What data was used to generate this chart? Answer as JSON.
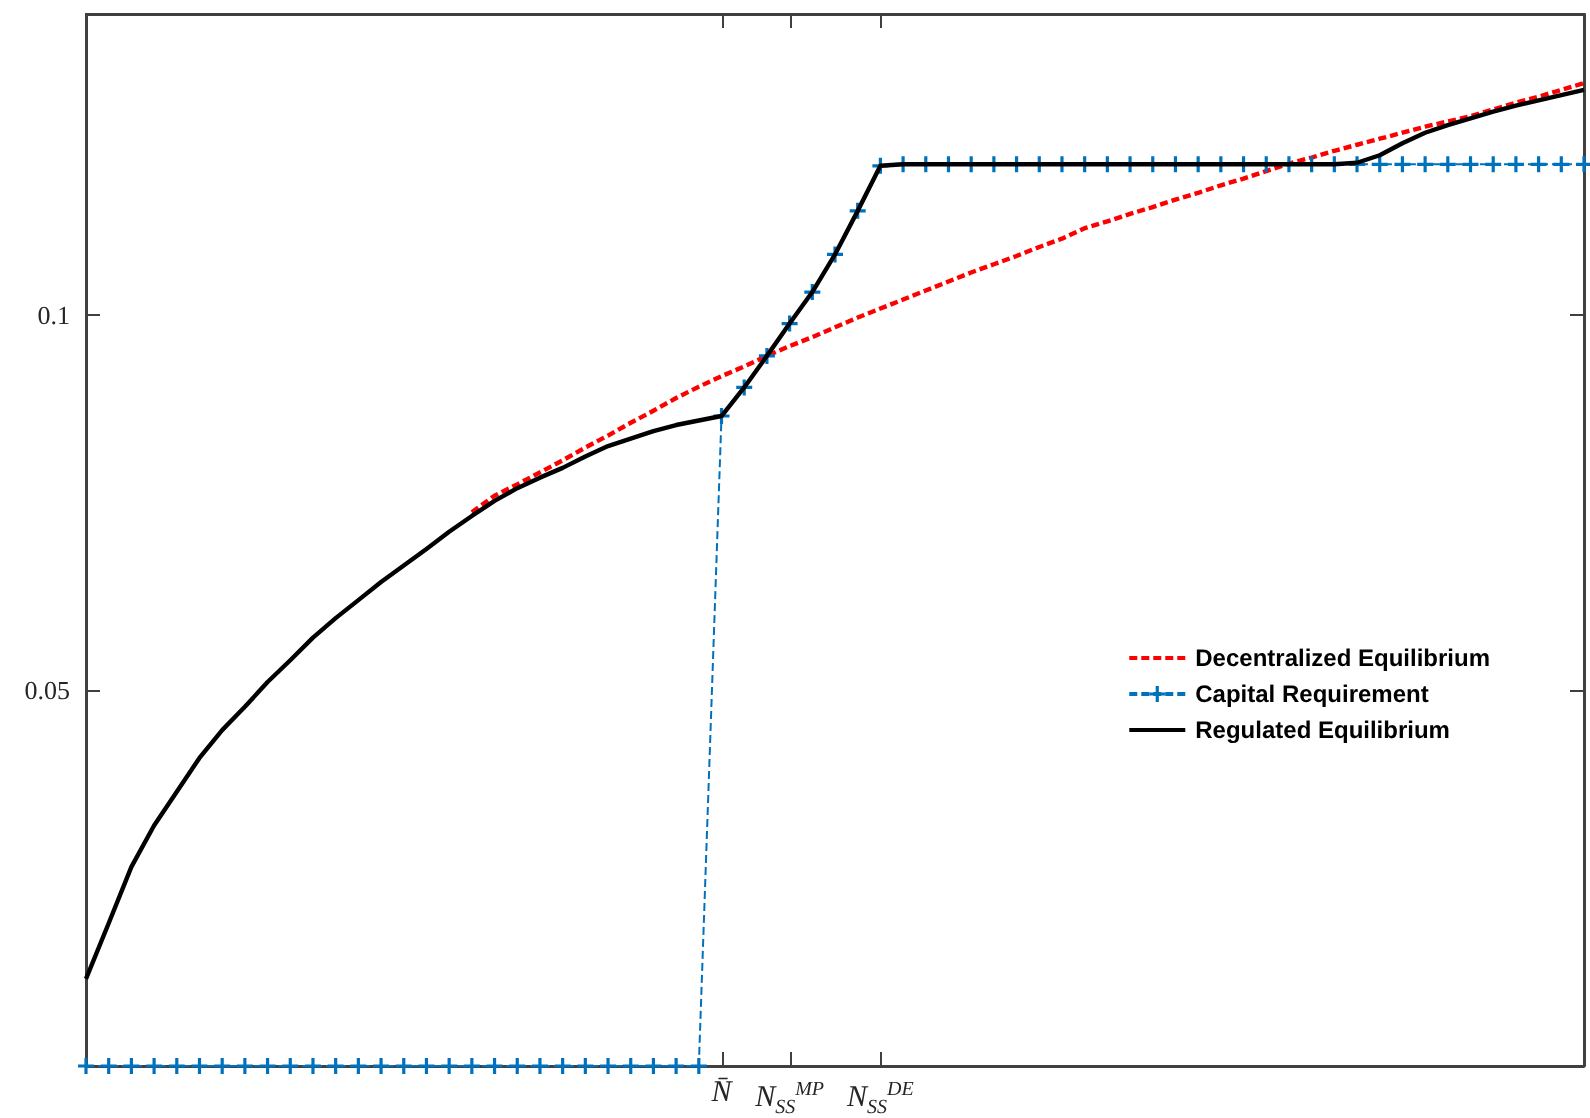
{
  "chart_data": {
    "type": "line",
    "categories": [
      null,
      null,
      null,
      null,
      null,
      null,
      null,
      null,
      null,
      null,
      null,
      null,
      null,
      null,
      null,
      null,
      null,
      null,
      null,
      null,
      null,
      null,
      null,
      null,
      null,
      null,
      null,
      null,
      "N̄",
      null,
      null,
      "N$_{SS}$$^{MP}$",
      null,
      null,
      null,
      "N$_{SS}$$^{DE}$",
      null,
      null,
      null,
      null,
      null,
      null,
      null,
      null,
      null,
      null,
      null,
      null,
      null,
      null,
      null,
      null,
      null,
      null,
      null,
      null,
      null,
      null,
      null,
      null,
      null,
      null,
      null,
      null,
      null,
      null,
      null
    ],
    "series": [
      {
        "name": "Decentralized Equilibrium",
        "color": "#ff0000",
        "line_style": "dashed",
        "marker": "none",
        "values": [
          null,
          null,
          null,
          null,
          null,
          null,
          null,
          null,
          null,
          null,
          null,
          null,
          null,
          null,
          null,
          null,
          null,
          0.0737,
          0.0759,
          0.0774,
          0.079,
          0.0806,
          0.0823,
          0.0839,
          0.0856,
          0.0872,
          0.0889,
          0.0904,
          0.0918,
          0.0931,
          0.0945,
          0.0958,
          0.097,
          0.0983,
          0.0996,
          0.1008,
          0.102,
          0.1032,
          0.1044,
          0.1056,
          0.1067,
          0.1078,
          0.109,
          0.1101,
          0.1115,
          0.1124,
          0.1134,
          0.1143,
          0.1153,
          0.1162,
          0.1172,
          0.1181,
          0.1191,
          0.1201,
          0.1209,
          0.1218,
          0.1226,
          0.1234,
          0.1242,
          0.125,
          0.1257,
          0.1264,
          0.1273,
          0.1282,
          0.129,
          0.1299,
          0.1308
        ]
      },
      {
        "name": "Capital Requirement",
        "color": "#0072bd",
        "line_style": "dashed",
        "marker": "cross",
        "values": [
          0,
          0,
          0,
          0,
          0,
          0,
          0,
          0,
          0,
          0,
          0,
          0,
          0,
          0,
          0,
          0,
          0,
          0,
          0,
          0,
          0,
          0,
          0,
          0,
          0,
          0,
          0,
          0,
          0.0865,
          0.0903,
          0.0945,
          0.0988,
          0.103,
          0.108,
          0.1138,
          0.1198,
          0.12,
          0.12,
          0.12,
          0.12,
          0.12,
          0.12,
          0.12,
          0.12,
          0.12,
          0.12,
          0.12,
          0.12,
          0.12,
          0.12,
          0.12,
          0.12,
          0.12,
          0.12,
          0.12,
          0.12,
          0.12,
          0.12,
          0.12,
          0.12,
          0.12,
          0.12,
          0.12,
          0.12,
          0.12,
          0.12,
          0.12
        ]
      },
      {
        "name": "Regulated Equilibrium",
        "color": "#000000",
        "line_style": "solid",
        "marker": "none",
        "values": [
          0.0116,
          0.019,
          0.0265,
          0.032,
          0.0365,
          0.041,
          0.0447,
          0.0478,
          0.0511,
          0.054,
          0.057,
          0.0596,
          0.062,
          0.0644,
          0.0666,
          0.0688,
          0.0711,
          0.0732,
          0.0752,
          0.0769,
          0.0783,
          0.0796,
          0.0811,
          0.0825,
          0.0835,
          0.0845,
          0.0853,
          0.0859,
          0.0865,
          0.0903,
          0.0945,
          0.0988,
          0.103,
          0.108,
          0.1138,
          0.1198,
          0.12,
          0.12,
          0.12,
          0.12,
          0.12,
          0.12,
          0.12,
          0.12,
          0.12,
          0.12,
          0.12,
          0.12,
          0.12,
          0.12,
          0.12,
          0.12,
          0.12,
          0.12,
          0.12,
          0.12,
          0.1202,
          0.1212,
          0.1228,
          0.1242,
          0.1252,
          0.1261,
          0.127,
          0.1278,
          0.1285,
          0.1292,
          0.1299
        ]
      }
    ],
    "ylim": [
      0,
      0.14
    ],
    "yticks": [
      0.05,
      0.1
    ],
    "grid": false,
    "legend": "right"
  }
}
